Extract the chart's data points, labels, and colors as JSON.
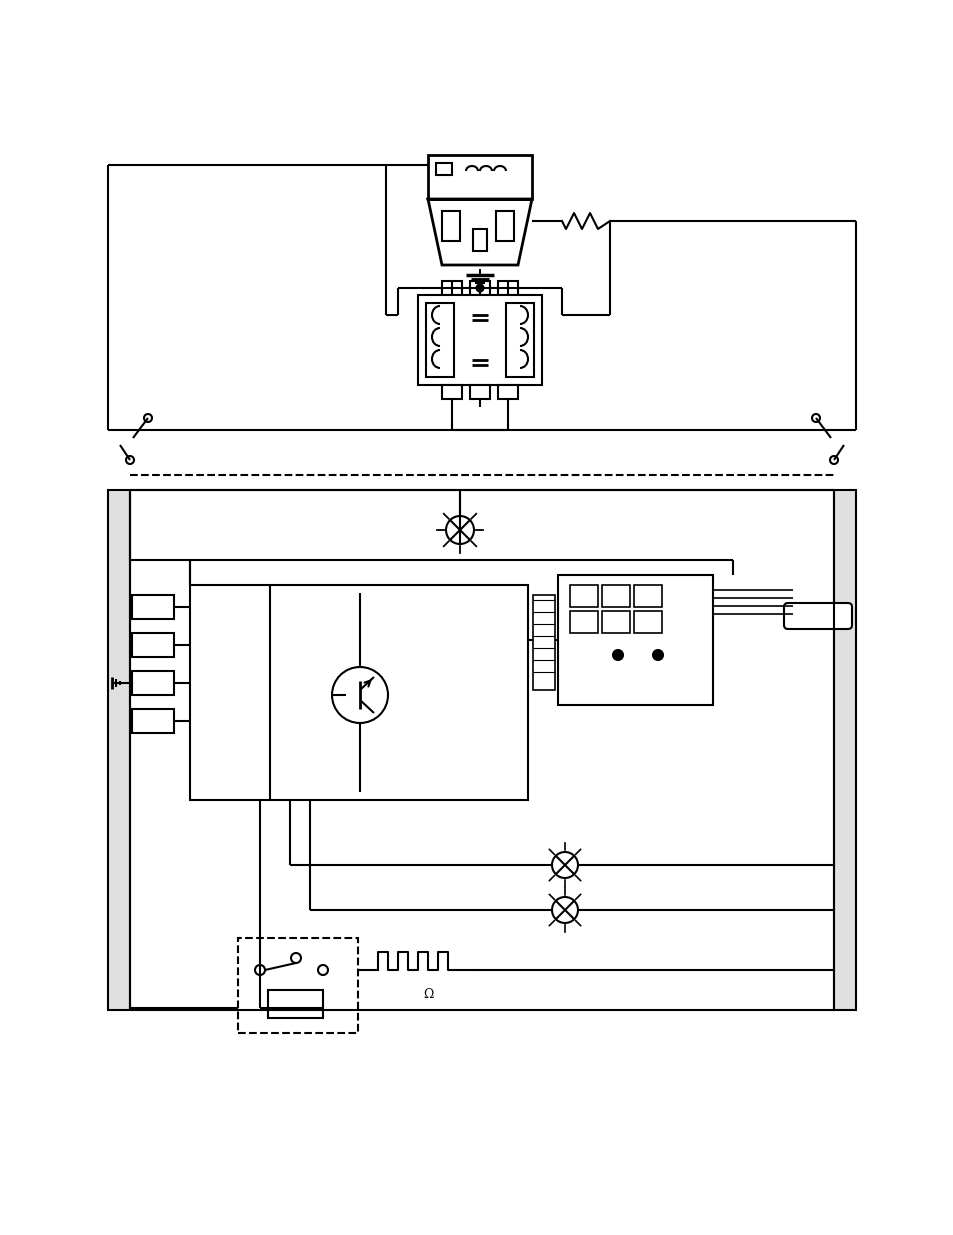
{
  "bg_color": "#ffffff",
  "line_color": "#000000",
  "fig_width": 9.54,
  "fig_height": 12.35,
  "dpi": 100
}
